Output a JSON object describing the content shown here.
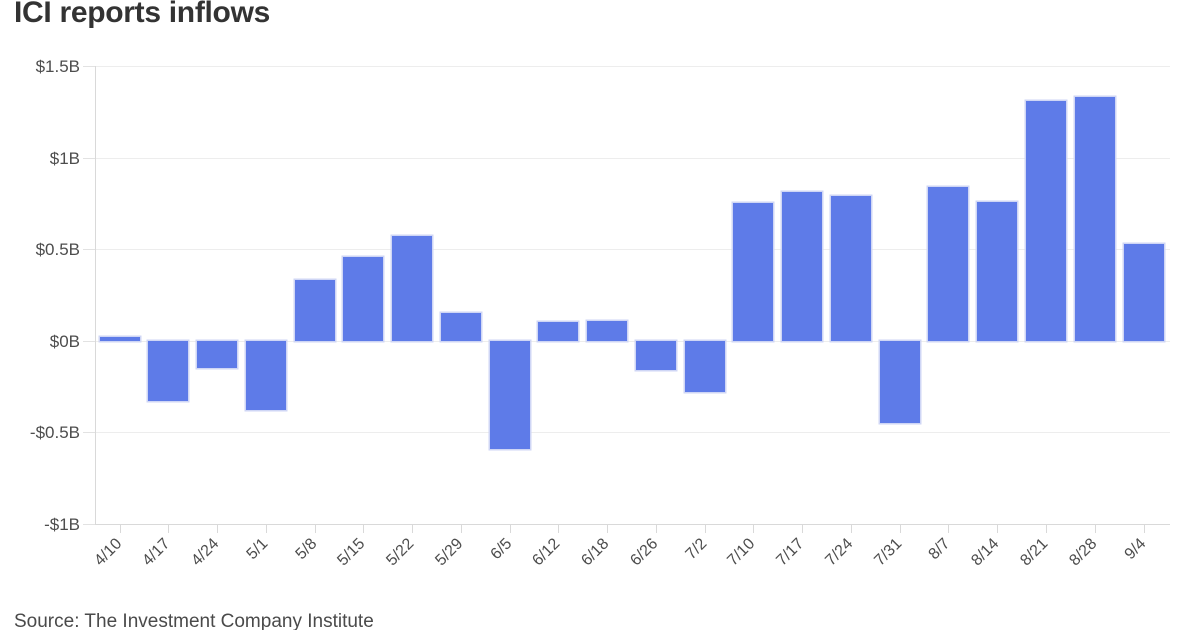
{
  "title": "ICI reports inflows",
  "source": "Source: The Investment Company Institute",
  "colors": {
    "bar_fill": "#5e7be8",
    "bar_stroke": "#cad2f4",
    "gridline": "#ededed",
    "axis_line": "#d9d9d9",
    "title_text": "#333333",
    "tick_text": "#4d4d4d",
    "source_text": "#4a4a4a",
    "background": "#ffffff"
  },
  "chart_data": {
    "type": "bar",
    "title": "ICI reports inflows",
    "xlabel": "",
    "ylabel": "",
    "categories": [
      "4/10",
      "4/17",
      "4/24",
      "5/1",
      "5/8",
      "5/15",
      "5/22",
      "5/29",
      "6/5",
      "6/12",
      "6/18",
      "6/26",
      "7/2",
      "7/10",
      "7/17",
      "7/24",
      "7/31",
      "8/7",
      "8/14",
      "8/21",
      "8/28",
      "9/4"
    ],
    "values": [
      0.02,
      -0.33,
      -0.15,
      -0.38,
      0.33,
      0.46,
      0.57,
      0.15,
      -0.59,
      0.1,
      0.11,
      -0.16,
      -0.28,
      0.75,
      0.81,
      0.79,
      -0.45,
      0.84,
      0.76,
      1.31,
      1.33,
      0.53
    ],
    "values_unit": "$B",
    "ylim": [
      -1,
      1.5
    ],
    "ytick_values": [
      1.5,
      1,
      0.5,
      0,
      -0.5,
      -1
    ],
    "ytick_labels": [
      "$1.5B",
      "$1B",
      "$0.5B",
      "$0B",
      "-$0.5B",
      "-$1B"
    ],
    "grid": true,
    "legend": "none",
    "bar_color": "#5e7be8"
  }
}
